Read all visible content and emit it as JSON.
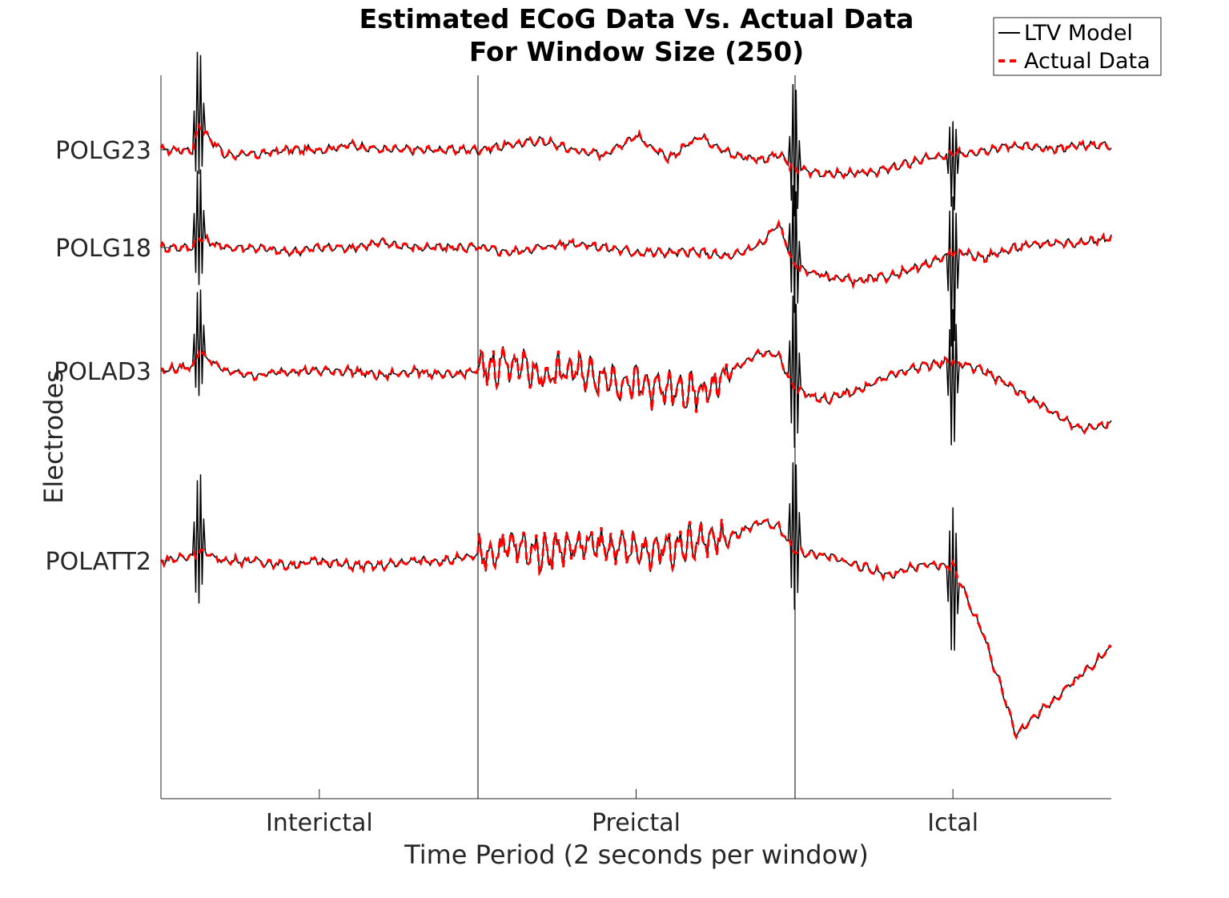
{
  "chart_data": {
    "type": "line",
    "title": [
      "Estimated ECoG Data Vs. Actual Data",
      "For Window Size (250)"
    ],
    "xlabel": "Time Period (2 seconds per window)",
    "ylabel": "Electrodes",
    "x_categories": [
      "Interictal",
      "Preictal",
      "Ictal"
    ],
    "y_categories": [
      {
        "label": "POLG23",
        "color": "#262626"
      },
      {
        "label": "POLG18",
        "color": "#262626"
      },
      {
        "label": "POLAD3",
        "color": "#ff0000"
      },
      {
        "label": "POLATT2",
        "color": "#ff0000"
      }
    ],
    "legend": {
      "placement": "top-right",
      "entries": [
        {
          "name": "LTV Model",
          "color": "#000000",
          "style": "solid"
        },
        {
          "name": "Actual Data",
          "color": "#ff0000",
          "style": "dashed"
        }
      ]
    },
    "x_range": [
      0,
      3
    ],
    "series_style": {
      "model_color": "#000000",
      "actual_color": "#ff0000"
    },
    "traces": [
      {
        "electrode": "POLG23",
        "points": [
          [
            0,
            0.0
          ],
          [
            0.1,
            0.0
          ],
          [
            0.12,
            0.25
          ],
          [
            0.2,
            -0.05
          ],
          [
            0.3,
            -0.05
          ],
          [
            0.4,
            0.0
          ],
          [
            0.5,
            0.0
          ],
          [
            0.6,
            0.05
          ],
          [
            0.7,
            0.0
          ],
          [
            0.8,
            0.0
          ],
          [
            0.9,
            0.0
          ],
          [
            1.0,
            0.0
          ],
          [
            1.1,
            0.05
          ],
          [
            1.2,
            0.1
          ],
          [
            1.3,
            0.0
          ],
          [
            1.4,
            -0.05
          ],
          [
            1.5,
            0.15
          ],
          [
            1.6,
            -0.1
          ],
          [
            1.7,
            0.15
          ],
          [
            1.8,
            -0.05
          ],
          [
            1.9,
            -0.1
          ],
          [
            1.95,
            -0.05
          ],
          [
            2.0,
            -0.2
          ],
          [
            2.1,
            -0.25
          ],
          [
            2.2,
            -0.25
          ],
          [
            2.3,
            -0.2
          ],
          [
            2.4,
            -0.1
          ],
          [
            2.5,
            -0.05
          ],
          [
            2.6,
            0.0
          ],
          [
            2.7,
            0.05
          ],
          [
            2.8,
            0.0
          ],
          [
            2.9,
            0.05
          ],
          [
            3.0,
            0.05
          ]
        ],
        "spikes": [
          {
            "x": 0.12,
            "amp": 0.85
          },
          {
            "x": 2.0,
            "amp": 0.9
          },
          {
            "x": 2.5,
            "amp": -0.6
          }
        ]
      },
      {
        "electrode": "POLG18",
        "points": [
          [
            0,
            0.0
          ],
          [
            0.1,
            0.0
          ],
          [
            0.12,
            0.1
          ],
          [
            0.2,
            0.0
          ],
          [
            0.3,
            0.0
          ],
          [
            0.4,
            -0.05
          ],
          [
            0.5,
            0.0
          ],
          [
            0.6,
            0.0
          ],
          [
            0.7,
            0.05
          ],
          [
            0.8,
            0.0
          ],
          [
            0.9,
            0.0
          ],
          [
            1.0,
            0.0
          ],
          [
            1.1,
            -0.05
          ],
          [
            1.2,
            0.0
          ],
          [
            1.3,
            0.05
          ],
          [
            1.4,
            0.0
          ],
          [
            1.5,
            -0.05
          ],
          [
            1.6,
            -0.05
          ],
          [
            1.7,
            -0.05
          ],
          [
            1.8,
            -0.1
          ],
          [
            1.9,
            0.05
          ],
          [
            1.95,
            0.25
          ],
          [
            2.0,
            -0.2
          ],
          [
            2.1,
            -0.3
          ],
          [
            2.2,
            -0.35
          ],
          [
            2.3,
            -0.3
          ],
          [
            2.4,
            -0.2
          ],
          [
            2.5,
            -0.05
          ],
          [
            2.6,
            -0.1
          ],
          [
            2.7,
            0.0
          ],
          [
            2.8,
            0.05
          ],
          [
            2.9,
            0.05
          ],
          [
            3.0,
            0.1
          ]
        ],
        "spikes": [
          {
            "x": 0.12,
            "amp": 0.8
          },
          {
            "x": 2.0,
            "amp": 0.85
          },
          {
            "x": 2.5,
            "amp": -1.0
          }
        ]
      },
      {
        "electrode": "POLAD3",
        "points": [
          [
            0,
            0.0
          ],
          [
            0.1,
            0.05
          ],
          [
            0.12,
            0.2
          ],
          [
            0.2,
            0.0
          ],
          [
            0.3,
            -0.05
          ],
          [
            0.4,
            0.0
          ],
          [
            0.5,
            0.0
          ],
          [
            0.6,
            0.0
          ],
          [
            0.7,
            -0.05
          ],
          [
            0.8,
            0.0
          ],
          [
            0.9,
            -0.05
          ],
          [
            1.0,
            0.0
          ],
          [
            1.1,
            0.1
          ],
          [
            1.2,
            -0.05
          ],
          [
            1.3,
            0.0
          ],
          [
            1.4,
            -0.05
          ],
          [
            1.5,
            -0.15
          ],
          [
            1.6,
            -0.2
          ],
          [
            1.7,
            -0.25
          ],
          [
            1.8,
            0.0
          ],
          [
            1.9,
            0.2
          ],
          [
            1.95,
            0.15
          ],
          [
            2.0,
            -0.2
          ],
          [
            2.1,
            -0.3
          ],
          [
            2.2,
            -0.2
          ],
          [
            2.3,
            -0.05
          ],
          [
            2.4,
            0.05
          ],
          [
            2.5,
            0.1
          ],
          [
            2.6,
            0.0
          ],
          [
            2.7,
            -0.2
          ],
          [
            2.8,
            -0.4
          ],
          [
            2.9,
            -0.6
          ],
          [
            3.0,
            -0.55
          ]
        ],
        "spikes": [
          {
            "x": 0.12,
            "amp": 0.75
          },
          {
            "x": 2.0,
            "amp": 1.0
          },
          {
            "x": 2.5,
            "amp": -0.9
          }
        ]
      },
      {
        "electrode": "POLATT2",
        "points": [
          [
            0,
            0.0
          ],
          [
            0.1,
            0.05
          ],
          [
            0.12,
            0.1
          ],
          [
            0.2,
            0.0
          ],
          [
            0.3,
            0.0
          ],
          [
            0.4,
            -0.05
          ],
          [
            0.5,
            0.0
          ],
          [
            0.6,
            -0.05
          ],
          [
            0.7,
            -0.05
          ],
          [
            0.8,
            0.0
          ],
          [
            0.9,
            0.0
          ],
          [
            1.0,
            0.05
          ],
          [
            1.1,
            0.15
          ],
          [
            1.2,
            0.1
          ],
          [
            1.3,
            0.15
          ],
          [
            1.4,
            0.15
          ],
          [
            1.5,
            0.1
          ],
          [
            1.6,
            0.15
          ],
          [
            1.7,
            0.2
          ],
          [
            1.8,
            0.25
          ],
          [
            1.9,
            0.4
          ],
          [
            1.95,
            0.35
          ],
          [
            2.0,
            0.1
          ],
          [
            2.1,
            0.05
          ],
          [
            2.2,
            -0.05
          ],
          [
            2.3,
            -0.15
          ],
          [
            2.4,
            -0.05
          ],
          [
            2.5,
            -0.05
          ],
          [
            2.6,
            -0.8
          ],
          [
            2.7,
            -1.8
          ],
          [
            2.8,
            -1.5
          ],
          [
            2.9,
            -1.2
          ],
          [
            3.0,
            -0.9
          ]
        ],
        "spikes": [
          {
            "x": 0.12,
            "amp": 0.85
          },
          {
            "x": 2.0,
            "amp": 1.0
          },
          {
            "x": 2.5,
            "amp": -0.95
          }
        ]
      }
    ]
  }
}
